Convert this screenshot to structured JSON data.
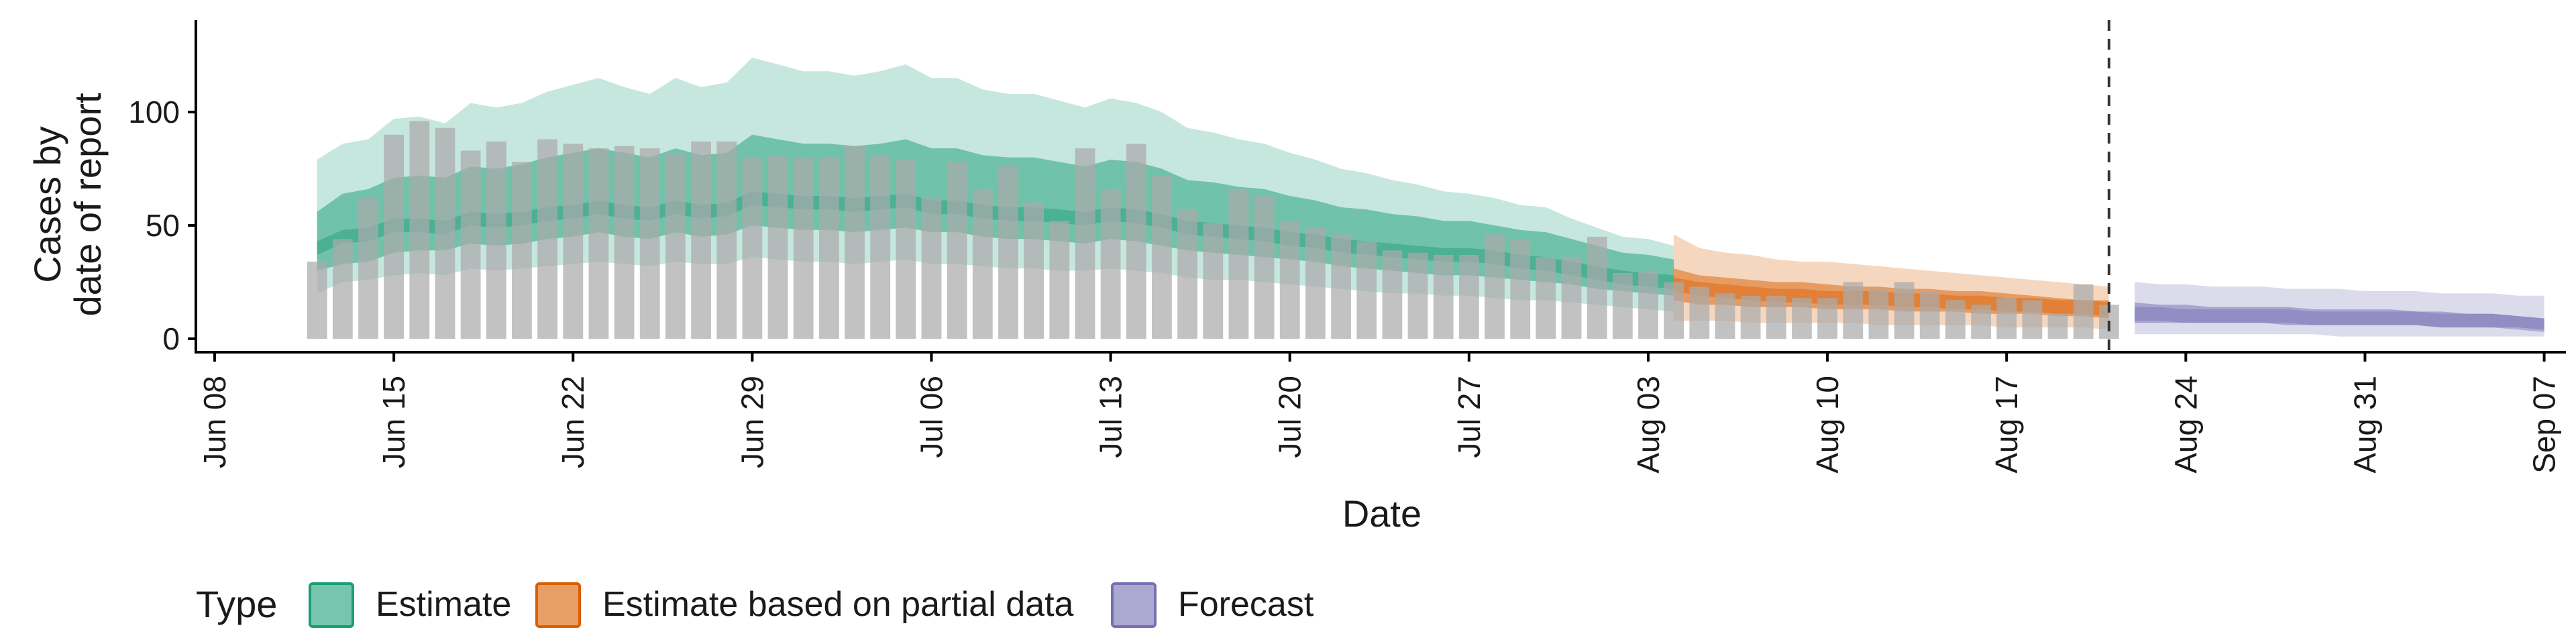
{
  "chart_data": {
    "type": "area",
    "title": "",
    "xlabel": "Date",
    "ylabel_lines": [
      "Cases by",
      "date of report"
    ],
    "x_tick_labels": [
      "Jun 08",
      "Jun 15",
      "Jun 22",
      "Jun 29",
      "Jul 06",
      "Jul 13",
      "Jul 20",
      "Jul 27",
      "Aug 03",
      "Aug 10",
      "Aug 17",
      "Aug 24",
      "Aug 31",
      "Sep 07"
    ],
    "x_tick_days": [
      0,
      7,
      14,
      21,
      28,
      35,
      42,
      49,
      56,
      63,
      70,
      77,
      84,
      91
    ],
    "x_range_days": [
      0,
      91
    ],
    "x_origin_date": "2020-06-08",
    "y_ticks": [
      0,
      50,
      100
    ],
    "ylim": [
      -5,
      140
    ],
    "forecast_line_day": 74,
    "legend": {
      "title": "Type",
      "items": [
        {
          "label": "Estimate",
          "fill": "#1b9e77",
          "stroke": "#1b9e77"
        },
        {
          "label": "Estimate based on partial data",
          "fill": "#d95f02",
          "stroke": "#d95f02"
        },
        {
          "label": "Forecast",
          "fill": "#7570b3",
          "stroke": "#7570b3"
        }
      ]
    },
    "colors": {
      "bars": "#aaaaaa",
      "estimate": "#1b9e77",
      "partial": "#d95f02",
      "forecast": "#7570b3",
      "axis": "#000000",
      "vline": "#333333"
    },
    "reported_cases": {
      "start_day": 4,
      "values": [
        34,
        44,
        62,
        90,
        96,
        93,
        83,
        87,
        78,
        88,
        86,
        84,
        85,
        84,
        82,
        87,
        87,
        80,
        81,
        80,
        80,
        85,
        81,
        79,
        62,
        78,
        66,
        76,
        60,
        52,
        84,
        66,
        86,
        72,
        57,
        51,
        66,
        63,
        52,
        49,
        46,
        43,
        39,
        38,
        37,
        37,
        46,
        44,
        36,
        36,
        45,
        29,
        30,
        25,
        23,
        20,
        19,
        19,
        18,
        18,
        25,
        22,
        25,
        21,
        17,
        15,
        18,
        17,
        11,
        24,
        15
      ]
    },
    "series": [
      {
        "name": "Estimate",
        "start_day": 4,
        "median": [
          40,
          45,
          46,
          50,
          50,
          49,
          53,
          52,
          53,
          55,
          56,
          58,
          56,
          55,
          58,
          56,
          57,
          62,
          61,
          60,
          60,
          59,
          60,
          61,
          58,
          58,
          56,
          55,
          55,
          54,
          53,
          55,
          54,
          52,
          49,
          48,
          47,
          46,
          44,
          43,
          41,
          40,
          39,
          38,
          37,
          37,
          36,
          34,
          33,
          31,
          29,
          27,
          26,
          25
        ],
        "lower_50": [
          30,
          33,
          34,
          38,
          39,
          39,
          42,
          41,
          42,
          44,
          45,
          47,
          45,
          44,
          47,
          45,
          46,
          50,
          49,
          48,
          48,
          47,
          48,
          49,
          47,
          47,
          45,
          44,
          44,
          43,
          42,
          44,
          43,
          41,
          39,
          38,
          37,
          36,
          35,
          34,
          32,
          31,
          30,
          29,
          28,
          28,
          27,
          26,
          25,
          24,
          22,
          21,
          20,
          19
        ],
        "upper_50": [
          56,
          64,
          66,
          71,
          72,
          71,
          76,
          75,
          77,
          80,
          82,
          84,
          82,
          80,
          84,
          81,
          82,
          90,
          88,
          86,
          86,
          85,
          86,
          88,
          84,
          84,
          81,
          80,
          80,
          78,
          76,
          79,
          78,
          75,
          70,
          69,
          67,
          66,
          63,
          61,
          58,
          57,
          55,
          54,
          52,
          52,
          50,
          48,
          47,
          44,
          41,
          38,
          37,
          35
        ],
        "lower_90": [
          20,
          25,
          26,
          28,
          29,
          28,
          31,
          30,
          31,
          32,
          33,
          34,
          33,
          32,
          34,
          33,
          33,
          36,
          35,
          34,
          34,
          33,
          34,
          35,
          33,
          33,
          32,
          31,
          31,
          30,
          30,
          31,
          30,
          29,
          27,
          26,
          26,
          25,
          24,
          23,
          22,
          21,
          20,
          20,
          19,
          19,
          18,
          17,
          17,
          16,
          15,
          14,
          13,
          12
        ],
        "upper_90": [
          79,
          86,
          88,
          97,
          98,
          95,
          104,
          102,
          104,
          109,
          112,
          115,
          111,
          108,
          115,
          111,
          113,
          124,
          121,
          118,
          118,
          116,
          118,
          121,
          115,
          115,
          110,
          108,
          108,
          105,
          102,
          106,
          104,
          100,
          93,
          91,
          88,
          86,
          82,
          79,
          75,
          73,
          70,
          68,
          65,
          64,
          62,
          59,
          58,
          53,
          49,
          45,
          44,
          41
        ]
      },
      {
        "name": "Estimate based on partial data",
        "start_day": 57,
        "median": [
          24,
          22,
          21,
          20,
          19,
          19,
          18,
          18,
          18,
          17,
          17,
          16,
          16,
          15,
          15,
          14,
          14,
          13
        ],
        "lower_50": [
          17,
          15,
          15,
          14,
          14,
          14,
          13,
          13,
          13,
          12,
          12,
          12,
          11,
          11,
          11,
          10,
          10,
          9
        ],
        "upper_50": [
          31,
          28,
          27,
          26,
          25,
          25,
          24,
          23,
          23,
          22,
          22,
          21,
          21,
          20,
          19,
          18,
          17,
          17
        ],
        "lower_90": [
          8,
          8,
          8,
          7,
          7,
          7,
          7,
          7,
          6,
          6,
          6,
          6,
          6,
          5,
          5,
          5,
          5,
          4
        ],
        "upper_90": [
          46,
          40,
          38,
          37,
          35,
          34,
          34,
          33,
          32,
          31,
          30,
          29,
          28,
          27,
          26,
          25,
          24,
          23
        ]
      },
      {
        "name": "Forecast",
        "start_day": 75,
        "median": [
          11,
          11,
          10,
          10,
          10,
          10,
          10,
          9,
          9,
          9,
          9,
          9,
          8,
          8,
          8,
          7,
          6
        ],
        "lower_50": [
          7,
          7,
          7,
          7,
          7,
          7,
          6,
          6,
          6,
          6,
          6,
          6,
          5,
          5,
          5,
          5,
          4
        ],
        "upper_50": [
          16,
          15,
          15,
          14,
          14,
          14,
          14,
          13,
          13,
          13,
          13,
          12,
          12,
          11,
          11,
          10,
          9
        ],
        "lower_90": [
          2,
          2,
          2,
          2,
          2,
          2,
          2,
          2,
          1,
          1,
          1,
          1,
          1,
          1,
          1,
          1,
          1
        ],
        "upper_90": [
          25,
          24,
          24,
          23,
          23,
          23,
          22,
          22,
          22,
          21,
          21,
          21,
          20,
          20,
          20,
          19,
          19
        ]
      }
    ]
  }
}
